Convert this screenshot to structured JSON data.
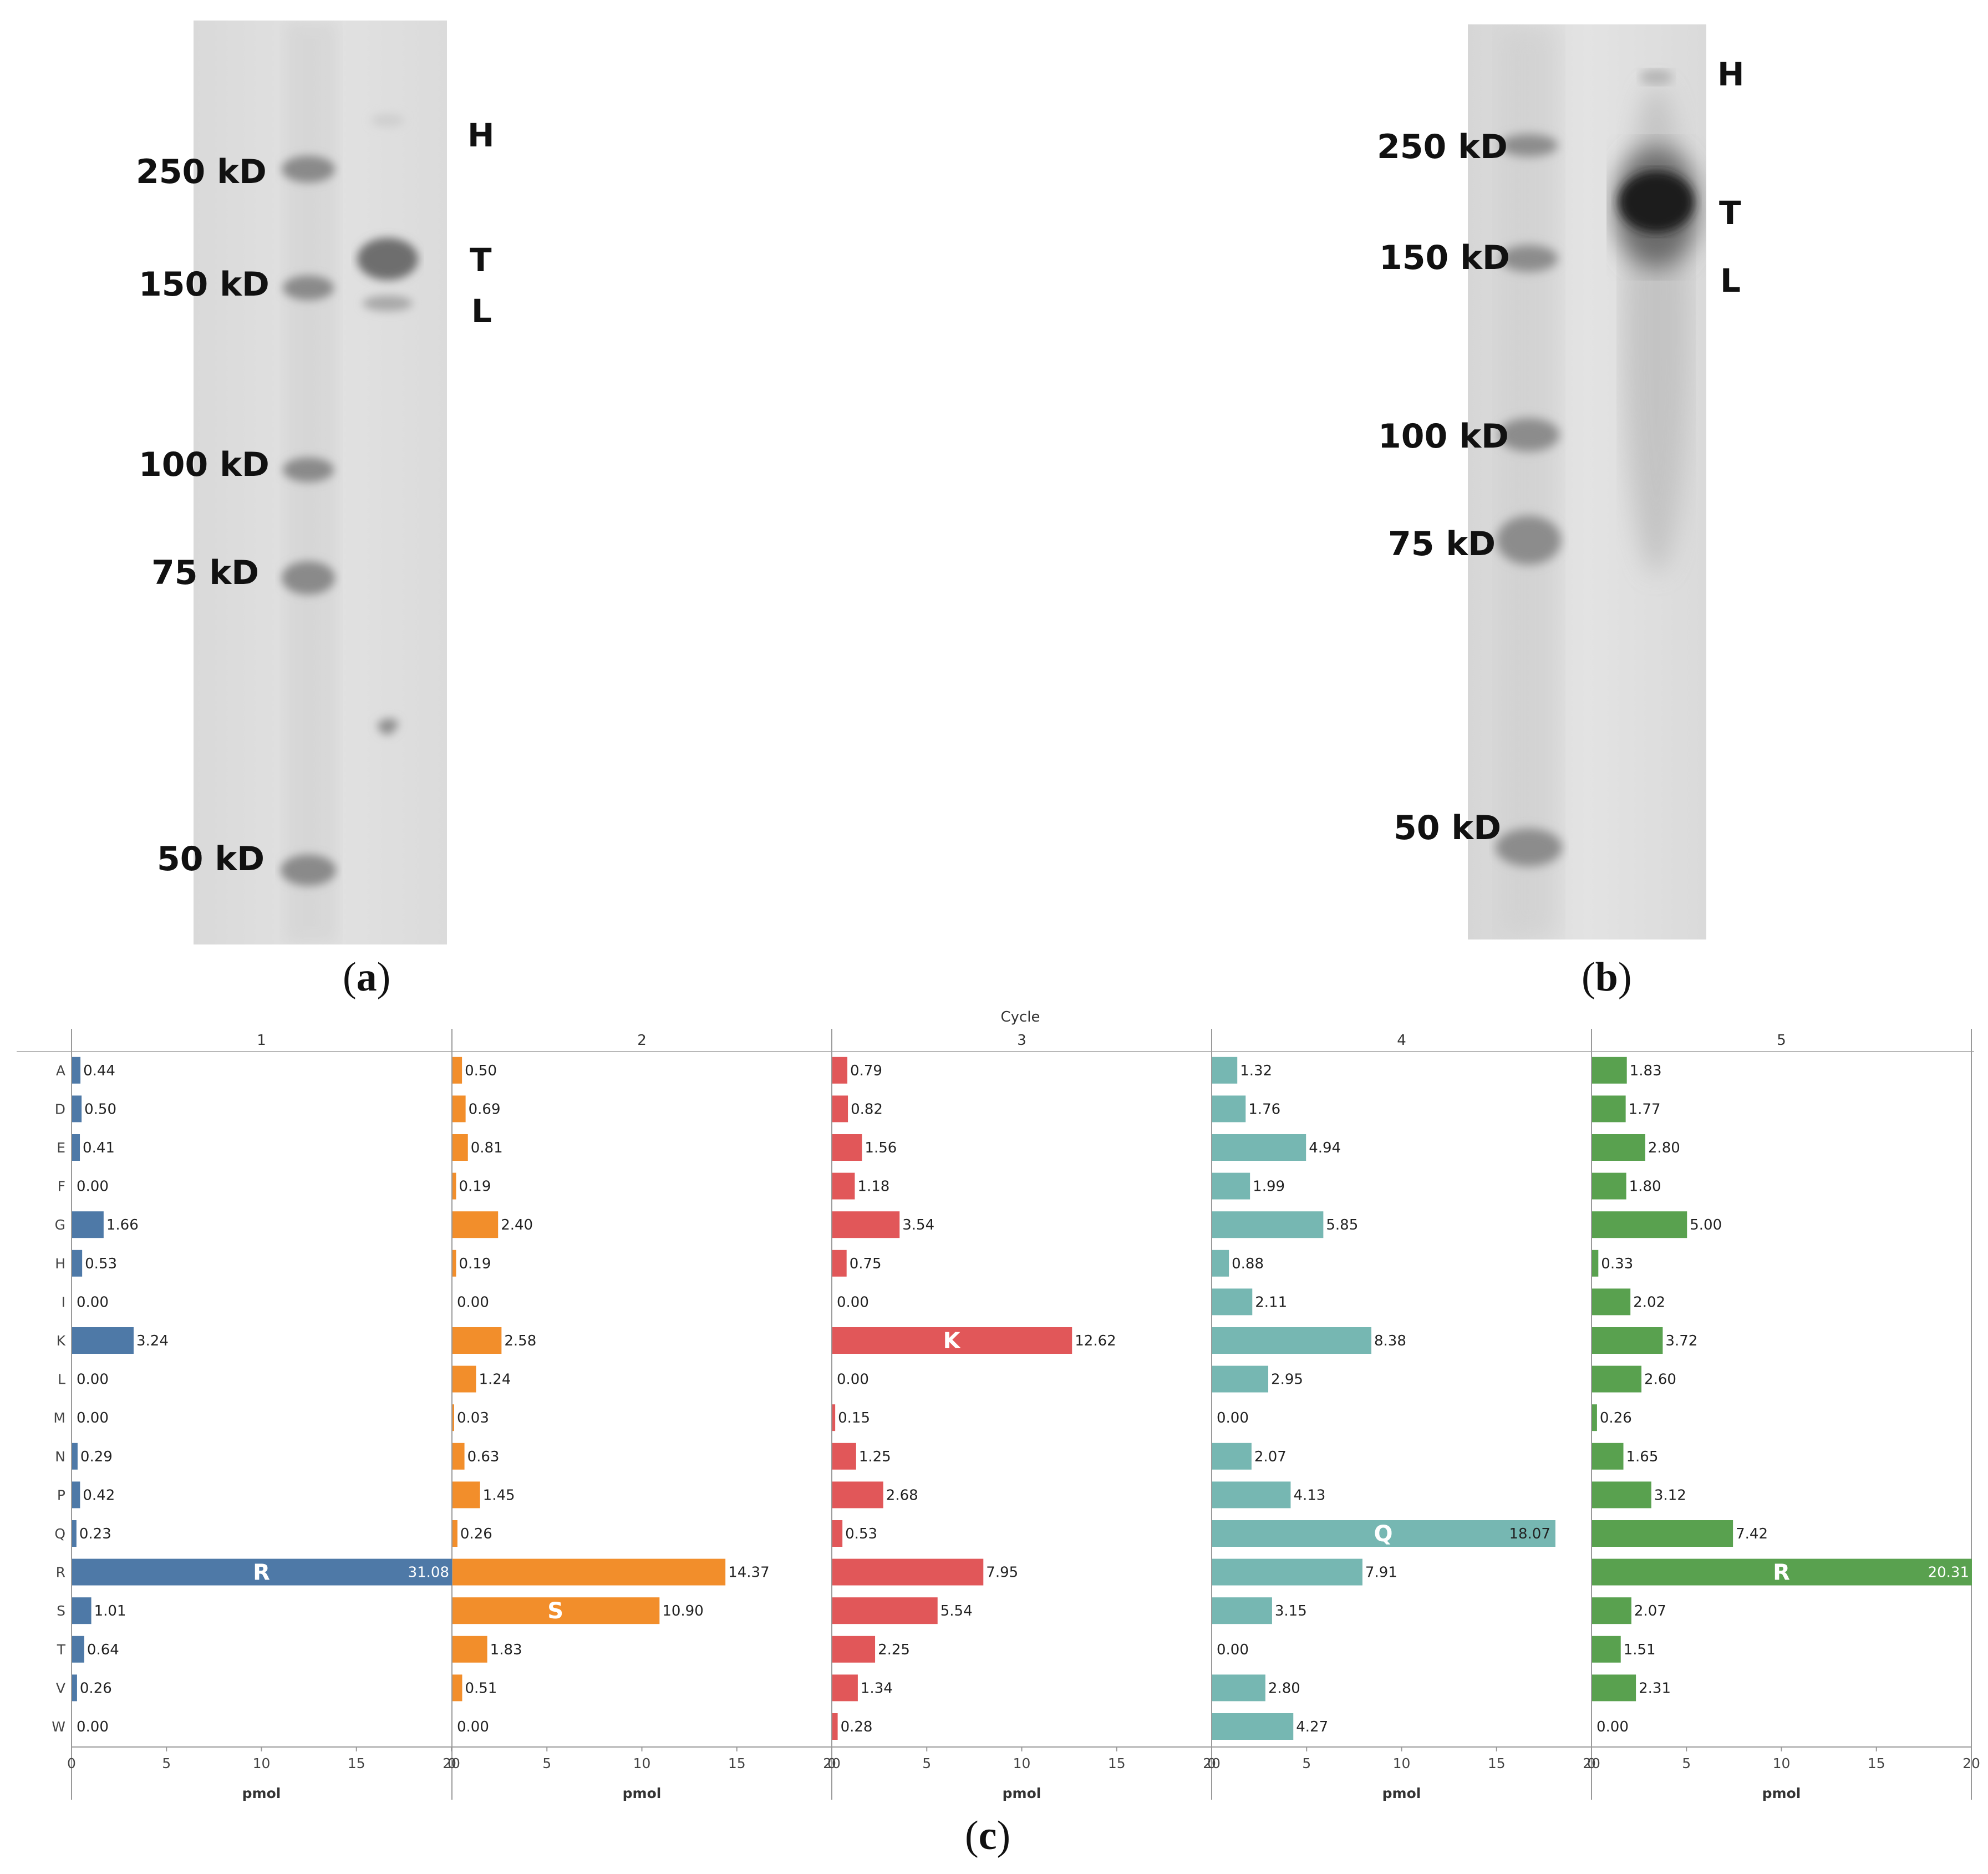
{
  "panels": {
    "a": {
      "caption_open": "(",
      "caption_letter": "a",
      "caption_close": ")",
      "markers": [
        "250 kD",
        "150 kD",
        "100 kD",
        "75 kD",
        "50 kD"
      ],
      "band_labels": [
        "H",
        "T",
        "L"
      ]
    },
    "b": {
      "caption_open": "(",
      "caption_letter": "b",
      "caption_close": ")",
      "markers": [
        "250 kD",
        "150 kD",
        "100 kD",
        "75 kD",
        "50 kD"
      ],
      "band_labels": [
        "H",
        "T",
        "L"
      ]
    },
    "c": {
      "caption_open": "(",
      "caption_letter": "c",
      "caption_close": ")"
    }
  },
  "chart_data": {
    "type": "bar",
    "orientation": "horizontal",
    "title": "Cycle",
    "xlabel": "pmol",
    "xlim": [
      0,
      20
    ],
    "xticks": [
      0,
      5,
      10,
      15,
      20
    ],
    "categories": [
      "A",
      "D",
      "E",
      "F",
      "G",
      "H",
      "I",
      "K",
      "L",
      "M",
      "N",
      "P",
      "Q",
      "R",
      "S",
      "T",
      "V",
      "W"
    ],
    "series": [
      {
        "name": "1",
        "color": "#4e79a7",
        "values": [
          0.44,
          0.5,
          0.41,
          0.0,
          1.66,
          0.53,
          0.0,
          3.24,
          0.0,
          0.0,
          0.29,
          0.42,
          0.23,
          31.08,
          1.01,
          0.64,
          0.26,
          0.0
        ],
        "value_labels": [
          "0.44",
          "0.50",
          "0.41",
          "0.00",
          "1.66",
          "0.53",
          "0.00",
          "3.24",
          "0.00",
          "0.00",
          "0.29",
          "0.42",
          "0.23",
          "31.08",
          "1.01",
          "0.64",
          "0.26",
          "0.00"
        ],
        "highlight": {
          "category": "R",
          "label": "R"
        }
      },
      {
        "name": "2",
        "color": "#f28e2b",
        "values": [
          0.5,
          0.69,
          0.81,
          0.19,
          2.4,
          0.19,
          0.0,
          2.58,
          1.24,
          0.03,
          0.63,
          1.45,
          0.26,
          14.37,
          10.9,
          1.83,
          0.51,
          0.0
        ],
        "value_labels": [
          "0.50",
          "0.69",
          "0.81",
          "0.19",
          "2.40",
          "0.19",
          "0.00",
          "2.58",
          "1.24",
          "0.03",
          "0.63",
          "1.45",
          "0.26",
          "14.37",
          "10.90",
          "1.83",
          "0.51",
          "0.00"
        ],
        "highlight": {
          "category": "S",
          "label": "S"
        }
      },
      {
        "name": "3",
        "color": "#e15759",
        "values": [
          0.79,
          0.82,
          1.56,
          1.18,
          3.54,
          0.75,
          0.0,
          12.62,
          0.0,
          0.15,
          1.25,
          2.68,
          0.53,
          7.95,
          5.54,
          2.25,
          1.34,
          0.28
        ],
        "value_labels": [
          "0.79",
          "0.82",
          "1.56",
          "1.18",
          "3.54",
          "0.75",
          "0.00",
          "12.62",
          "0.00",
          "0.15",
          "1.25",
          "2.68",
          "0.53",
          "7.95",
          "5.54",
          "2.25",
          "1.34",
          "0.28"
        ],
        "highlight": {
          "category": "K",
          "label": "K"
        }
      },
      {
        "name": "4",
        "color": "#76b7b2",
        "values": [
          1.32,
          1.76,
          4.94,
          1.99,
          5.85,
          0.88,
          2.11,
          8.38,
          2.95,
          0.0,
          2.07,
          4.13,
          18.07,
          7.91,
          3.15,
          0.0,
          2.8,
          4.27
        ],
        "value_labels": [
          "1.32",
          "1.76",
          "4.94",
          "1.99",
          "5.85",
          "0.88",
          "2.11",
          "8.38",
          "2.95",
          "0.00",
          "2.07",
          "4.13",
          "18.07",
          "7.91",
          "3.15",
          "0.00",
          "2.80",
          "4.27"
        ],
        "highlight": {
          "category": "Q",
          "label": "Q"
        }
      },
      {
        "name": "5",
        "color": "#59a14f",
        "values": [
          1.83,
          1.77,
          2.8,
          1.8,
          5.0,
          0.33,
          2.02,
          3.72,
          2.6,
          0.26,
          1.65,
          3.12,
          7.42,
          20.31,
          2.07,
          1.51,
          2.31,
          0.0
        ],
        "value_labels": [
          "1.83",
          "1.77",
          "2.80",
          "1.80",
          "5.00",
          "0.33",
          "2.02",
          "3.72",
          "2.60",
          "0.26",
          "1.65",
          "3.12",
          "7.42",
          "20.31",
          "2.07",
          "1.51",
          "2.31",
          "0.00"
        ],
        "highlight": {
          "category": "R",
          "label": "R"
        }
      }
    ]
  }
}
